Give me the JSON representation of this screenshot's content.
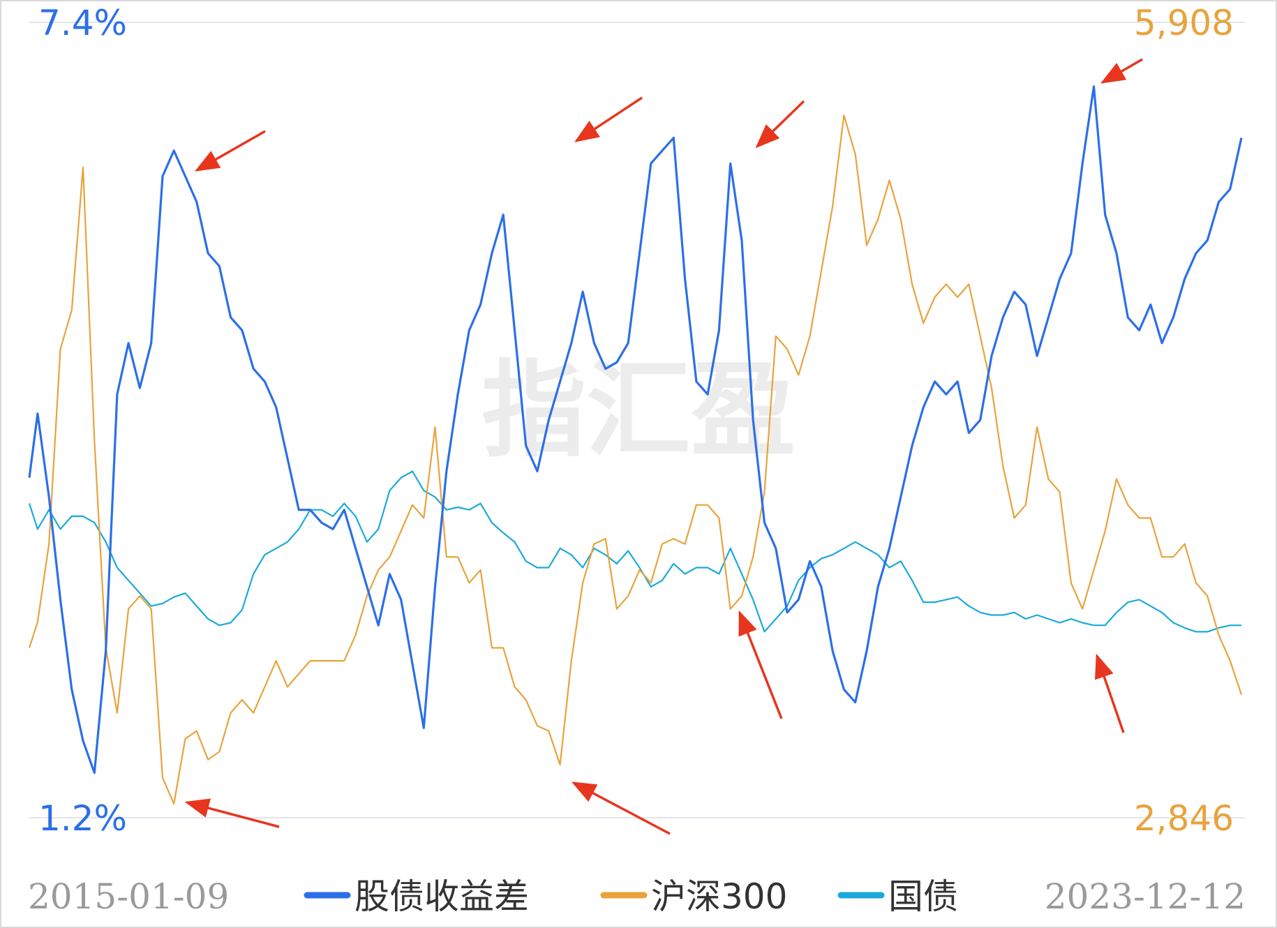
{
  "chart_data": {
    "type": "line",
    "watermark": "指汇盈",
    "x_start": "2015-01-09",
    "x_end": "2023-12-12",
    "left_axis": {
      "max_label": "7.4%",
      "min_label": "1.2%",
      "range": [
        1.2,
        7.4
      ],
      "color": "#2b6fe8"
    },
    "right_axis": {
      "max_label": "5,908",
      "min_label": "2,846",
      "range": [
        2846,
        5908
      ],
      "color": "#e8a33c"
    },
    "grid": true,
    "legend_position": "bottom",
    "series": [
      {
        "name": "股债收益差",
        "axis": "left",
        "color": "#2b6fe8",
        "x": [
          "2015-01",
          "2015-02",
          "2015-03",
          "2015-04",
          "2015-05",
          "2015-06",
          "2015-07",
          "2015-08",
          "2015-09",
          "2015-10",
          "2015-11",
          "2015-12",
          "2016-01",
          "2016-02",
          "2016-03",
          "2016-04",
          "2016-05",
          "2016-06",
          "2016-07",
          "2016-08",
          "2016-09",
          "2016-10",
          "2016-11",
          "2016-12",
          "2017-01",
          "2017-02",
          "2017-03",
          "2017-04",
          "2017-05",
          "2017-06",
          "2017-07",
          "2017-08",
          "2017-09",
          "2017-10",
          "2017-11",
          "2017-12",
          "2018-01",
          "2018-02",
          "2018-03",
          "2018-04",
          "2018-05",
          "2018-06",
          "2018-07",
          "2018-08",
          "2018-09",
          "2018-10",
          "2018-11",
          "2018-12",
          "2019-01",
          "2019-02",
          "2019-03",
          "2019-04",
          "2019-05",
          "2019-06",
          "2019-07",
          "2019-08",
          "2019-09",
          "2019-10",
          "2019-11",
          "2019-12",
          "2020-01",
          "2020-02",
          "2020-03",
          "2020-04",
          "2020-05",
          "2020-06",
          "2020-07",
          "2020-08",
          "2020-09",
          "2020-10",
          "2020-11",
          "2020-12",
          "2021-01",
          "2021-02",
          "2021-03",
          "2021-04",
          "2021-05",
          "2021-06",
          "2021-07",
          "2021-08",
          "2021-09",
          "2021-10",
          "2021-11",
          "2021-12",
          "2022-01",
          "2022-02",
          "2022-03",
          "2022-04",
          "2022-05",
          "2022-06",
          "2022-07",
          "2022-08",
          "2022-09",
          "2022-10",
          "2022-11",
          "2022-12",
          "2023-01",
          "2023-02",
          "2023-03",
          "2023-04",
          "2023-05",
          "2023-06",
          "2023-07",
          "2023-08",
          "2023-09",
          "2023-10",
          "2023-11",
          "2023-12"
        ],
        "values": [
          3.85,
          4.35,
          3.7,
          2.9,
          2.2,
          1.8,
          1.55,
          2.5,
          4.5,
          4.9,
          4.55,
          4.9,
          6.2,
          6.4,
          6.2,
          6.0,
          5.6,
          5.5,
          5.1,
          5.0,
          4.7,
          4.6,
          4.4,
          4.0,
          3.6,
          3.6,
          3.5,
          3.45,
          3.6,
          3.3,
          3.0,
          2.7,
          3.1,
          2.9,
          2.4,
          1.9,
          3.0,
          3.9,
          4.5,
          5.0,
          5.2,
          5.6,
          5.9,
          5.0,
          4.1,
          3.9,
          4.3,
          4.6,
          4.9,
          5.3,
          4.9,
          4.7,
          4.75,
          4.9,
          5.6,
          6.3,
          6.4,
          6.5,
          5.4,
          4.6,
          4.5,
          5.0,
          6.3,
          5.7,
          4.3,
          3.5,
          3.3,
          2.8,
          2.9,
          3.2,
          3.0,
          2.5,
          2.2,
          2.1,
          2.5,
          3.0,
          3.3,
          3.7,
          4.1,
          4.4,
          4.6,
          4.5,
          4.6,
          4.2,
          4.3,
          4.8,
          5.1,
          5.3,
          5.2,
          4.8,
          5.1,
          5.4,
          5.6,
          6.3,
          6.9,
          5.9,
          5.6,
          5.1,
          5.0,
          5.2,
          4.9,
          5.1,
          5.4,
          5.6,
          5.7,
          6.0,
          6.1,
          6.5
        ]
      },
      {
        "name": "沪深300",
        "axis": "right",
        "color": "#e8a33c",
        "x": [
          "2015-01",
          "2015-02",
          "2015-03",
          "2015-04",
          "2015-05",
          "2015-06",
          "2015-07",
          "2015-08",
          "2015-09",
          "2015-10",
          "2015-11",
          "2015-12",
          "2016-01",
          "2016-02",
          "2016-03",
          "2016-04",
          "2016-05",
          "2016-06",
          "2016-07",
          "2016-08",
          "2016-09",
          "2016-10",
          "2016-11",
          "2016-12",
          "2017-01",
          "2017-02",
          "2017-03",
          "2017-04",
          "2017-05",
          "2017-06",
          "2017-07",
          "2017-08",
          "2017-09",
          "2017-10",
          "2017-11",
          "2017-12",
          "2018-01",
          "2018-02",
          "2018-03",
          "2018-04",
          "2018-05",
          "2018-06",
          "2018-07",
          "2018-08",
          "2018-09",
          "2018-10",
          "2018-11",
          "2018-12",
          "2019-01",
          "2019-02",
          "2019-03",
          "2019-04",
          "2019-05",
          "2019-06",
          "2019-07",
          "2019-08",
          "2019-09",
          "2019-10",
          "2019-11",
          "2019-12",
          "2020-01",
          "2020-02",
          "2020-03",
          "2020-04",
          "2020-05",
          "2020-06",
          "2020-07",
          "2020-08",
          "2020-09",
          "2020-10",
          "2020-11",
          "2020-12",
          "2021-01",
          "2021-02",
          "2021-03",
          "2021-04",
          "2021-05",
          "2021-06",
          "2021-07",
          "2021-08",
          "2021-09",
          "2021-10",
          "2021-11",
          "2021-12",
          "2022-01",
          "2022-02",
          "2022-03",
          "2022-04",
          "2022-05",
          "2022-06",
          "2022-07",
          "2022-08",
          "2022-09",
          "2022-10",
          "2022-11",
          "2022-12",
          "2023-01",
          "2023-02",
          "2023-03",
          "2023-04",
          "2023-05",
          "2023-06",
          "2023-07",
          "2023-08",
          "2023-09",
          "2023-10",
          "2023-11",
          "2023-12"
        ],
        "values": [
          3500,
          3600,
          3900,
          4650,
          4800,
          5350,
          4300,
          3500,
          3250,
          3650,
          3700,
          3650,
          3000,
          2900,
          3150,
          3180,
          3070,
          3100,
          3250,
          3300,
          3250,
          3350,
          3450,
          3350,
          3400,
          3450,
          3450,
          3450,
          3450,
          3550,
          3700,
          3800,
          3850,
          3950,
          4050,
          4000,
          4350,
          3850,
          3850,
          3750,
          3800,
          3500,
          3500,
          3350,
          3300,
          3200,
          3180,
          3050,
          3450,
          3750,
          3900,
          3920,
          3650,
          3700,
          3800,
          3750,
          3900,
          3920,
          3900,
          4050,
          4050,
          4000,
          3650,
          3700,
          3850,
          4100,
          4700,
          4650,
          4550,
          4700,
          4950,
          5200,
          5550,
          5400,
          5050,
          5150,
          5300,
          5150,
          4900,
          4750,
          4850,
          4900,
          4850,
          4900,
          4700,
          4500,
          4200,
          4000,
          4050,
          4350,
          4150,
          4100,
          3750,
          3650,
          3800,
          3950,
          4150,
          4050,
          4000,
          4000,
          3850,
          3850,
          3900,
          3750,
          3700,
          3550,
          3450,
          3320
        ]
      },
      {
        "name": "国债",
        "axis": "left",
        "color": "#1aaad8",
        "x": [
          "2015-01",
          "2015-02",
          "2015-03",
          "2015-04",
          "2015-05",
          "2015-06",
          "2015-07",
          "2015-08",
          "2015-09",
          "2015-10",
          "2015-11",
          "2015-12",
          "2016-01",
          "2016-02",
          "2016-03",
          "2016-04",
          "2016-05",
          "2016-06",
          "2016-07",
          "2016-08",
          "2016-09",
          "2016-10",
          "2016-11",
          "2016-12",
          "2017-01",
          "2017-02",
          "2017-03",
          "2017-04",
          "2017-05",
          "2017-06",
          "2017-07",
          "2017-08",
          "2017-09",
          "2017-10",
          "2017-11",
          "2017-12",
          "2018-01",
          "2018-02",
          "2018-03",
          "2018-04",
          "2018-05",
          "2018-06",
          "2018-07",
          "2018-08",
          "2018-09",
          "2018-10",
          "2018-11",
          "2018-12",
          "2019-01",
          "2019-02",
          "2019-03",
          "2019-04",
          "2019-05",
          "2019-06",
          "2019-07",
          "2019-08",
          "2019-09",
          "2019-10",
          "2019-11",
          "2019-12",
          "2020-01",
          "2020-02",
          "2020-03",
          "2020-04",
          "2020-05",
          "2020-06",
          "2020-07",
          "2020-08",
          "2020-09",
          "2020-10",
          "2020-11",
          "2020-12",
          "2021-01",
          "2021-02",
          "2021-03",
          "2021-04",
          "2021-05",
          "2021-06",
          "2021-07",
          "2021-08",
          "2021-09",
          "2021-10",
          "2021-11",
          "2021-12",
          "2022-01",
          "2022-02",
          "2022-03",
          "2022-04",
          "2022-05",
          "2022-06",
          "2022-07",
          "2022-08",
          "2022-09",
          "2022-10",
          "2022-11",
          "2022-12",
          "2023-01",
          "2023-02",
          "2023-03",
          "2023-04",
          "2023-05",
          "2023-06",
          "2023-07",
          "2023-08",
          "2023-09",
          "2023-10",
          "2023-11",
          "2023-12"
        ],
        "values": [
          3.65,
          3.45,
          3.6,
          3.45,
          3.55,
          3.55,
          3.5,
          3.35,
          3.15,
          3.05,
          2.95,
          2.85,
          2.87,
          2.92,
          2.95,
          2.85,
          2.75,
          2.7,
          2.72,
          2.82,
          3.1,
          3.25,
          3.3,
          3.35,
          3.45,
          3.6,
          3.6,
          3.55,
          3.65,
          3.55,
          3.35,
          3.45,
          3.75,
          3.85,
          3.9,
          3.75,
          3.7,
          3.6,
          3.62,
          3.6,
          3.65,
          3.5,
          3.42,
          3.35,
          3.2,
          3.15,
          3.15,
          3.3,
          3.25,
          3.15,
          3.3,
          3.25,
          3.18,
          3.28,
          3.15,
          3.0,
          3.05,
          3.18,
          3.1,
          3.15,
          3.15,
          3.1,
          3.3,
          3.1,
          2.9,
          2.65,
          2.75,
          2.85,
          3.05,
          3.15,
          3.22,
          3.25,
          3.3,
          3.35,
          3.3,
          3.25,
          3.15,
          3.2,
          3.05,
          2.88,
          2.88,
          2.9,
          2.92,
          2.85,
          2.8,
          2.78,
          2.78,
          2.8,
          2.75,
          2.78,
          2.75,
          2.72,
          2.75,
          2.72,
          2.7,
          2.7,
          2.8,
          2.88,
          2.9,
          2.85,
          2.8,
          2.72,
          2.68,
          2.65,
          2.65,
          2.68,
          2.7,
          2.7
        ]
      }
    ],
    "arrows_color": "#e8351e"
  }
}
